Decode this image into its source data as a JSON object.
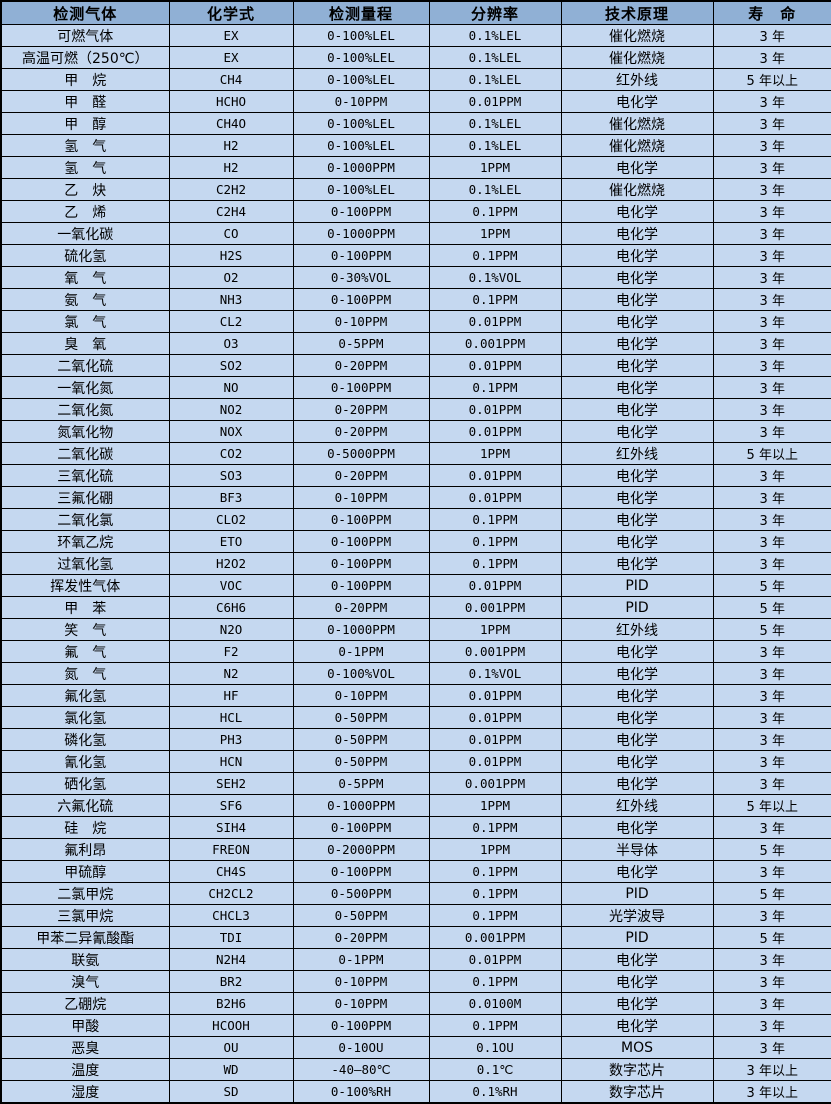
{
  "table": {
    "headers": [
      "检测气体",
      "化学式",
      "检测量程",
      "分辨率",
      "技术原理",
      "寿　命"
    ],
    "rows": [
      [
        "可燃气体",
        "EX",
        "0-100%LEL",
        "0.1%LEL",
        "催化燃烧",
        "3 年"
      ],
      [
        "高温可燃（250℃）",
        "EX",
        "0-100%LEL",
        "0.1%LEL",
        "催化燃烧",
        "3 年"
      ],
      [
        "甲　烷",
        "CH4",
        "0-100%LEL",
        "0.1%LEL",
        "红外线",
        "5 年以上"
      ],
      [
        "甲　醛",
        "HCHO",
        "0-10PPM",
        "0.01PPM",
        "电化学",
        "3 年"
      ],
      [
        "甲　醇",
        "CH4O",
        "0-100%LEL",
        "0.1%LEL",
        "催化燃烧",
        "3 年"
      ],
      [
        "氢　气",
        "H2",
        "0-100%LEL",
        "0.1%LEL",
        "催化燃烧",
        "3 年"
      ],
      [
        "氢　气",
        "H2",
        "0-1000PPM",
        "1PPM",
        "电化学",
        "3 年"
      ],
      [
        "乙　炔",
        "C2H2",
        "0-100%LEL",
        "0.1%LEL",
        "催化燃烧",
        "3 年"
      ],
      [
        "乙　烯",
        "C2H4",
        "0-100PPM",
        "0.1PPM",
        "电化学",
        "3 年"
      ],
      [
        "一氧化碳",
        "CO",
        "0-1000PPM",
        "1PPM",
        "电化学",
        "3 年"
      ],
      [
        "硫化氢",
        "H2S",
        "0-100PPM",
        "0.1PPM",
        "电化学",
        "3 年"
      ],
      [
        "氧　气",
        "O2",
        "0-30%VOL",
        "0.1%VOL",
        "电化学",
        "3 年"
      ],
      [
        "氨　气",
        "NH3",
        "0-100PPM",
        "0.1PPM",
        "电化学",
        "3 年"
      ],
      [
        "氯　气",
        "CL2",
        "0-10PPM",
        "0.01PPM",
        "电化学",
        "3 年"
      ],
      [
        "臭　氧",
        "O3",
        "0-5PPM",
        "0.001PPM",
        "电化学",
        "3 年"
      ],
      [
        "二氧化硫",
        "SO2",
        "0-20PPM",
        "0.01PPM",
        "电化学",
        "3 年"
      ],
      [
        "一氧化氮",
        "NO",
        "0-100PPM",
        "0.1PPM",
        "电化学",
        "3 年"
      ],
      [
        "二氧化氮",
        "NO2",
        "0-20PPM",
        "0.01PPM",
        "电化学",
        "3 年"
      ],
      [
        "氮氧化物",
        "NOX",
        "0-20PPM",
        "0.01PPM",
        "电化学",
        "3 年"
      ],
      [
        "二氧化碳",
        "CO2",
        "0-5000PPM",
        "1PPM",
        "红外线",
        "5 年以上"
      ],
      [
        "三氧化硫",
        "SO3",
        "0-20PPM",
        "0.01PPM",
        "电化学",
        "3 年"
      ],
      [
        "三氟化硼",
        "BF3",
        "0-10PPM",
        "0.01PPM",
        "电化学",
        "3 年"
      ],
      [
        "二氧化氯",
        "CLO2",
        "0-100PPM",
        "0.1PPM",
        "电化学",
        "3 年"
      ],
      [
        "环氧乙烷",
        "ETO",
        "0-100PPM",
        "0.1PPM",
        "电化学",
        "3 年"
      ],
      [
        "过氧化氢",
        "H2O2",
        "0-100PPM",
        "0.1PPM",
        "电化学",
        "3 年"
      ],
      [
        "挥发性气体",
        "VOC",
        "0-100PPM",
        "0.01PPM",
        "PID",
        "5 年"
      ],
      [
        "甲　苯",
        "C6H6",
        "0-20PPM",
        "0.001PPM",
        "PID",
        "5 年"
      ],
      [
        "笑　气",
        "N2O",
        "0-1000PPM",
        "1PPM",
        "红外线",
        "5 年"
      ],
      [
        "氟　气",
        "F2",
        "0-1PPM",
        "0.001PPM",
        "电化学",
        "3 年"
      ],
      [
        "氮　气",
        "N2",
        "0-100%VOL",
        "0.1%VOL",
        "电化学",
        "3 年"
      ],
      [
        "氟化氢",
        "HF",
        "0-10PPM",
        "0.01PPM",
        "电化学",
        "3 年"
      ],
      [
        "氯化氢",
        "HCL",
        "0-50PPM",
        "0.01PPM",
        "电化学",
        "3 年"
      ],
      [
        "磷化氢",
        "PH3",
        "0-50PPM",
        "0.01PPM",
        "电化学",
        "3 年"
      ],
      [
        "氰化氢",
        "HCN",
        "0-50PPM",
        "0.01PPM",
        "电化学",
        "3 年"
      ],
      [
        "硒化氢",
        "SEH2",
        "0-5PPM",
        "0.001PPM",
        "电化学",
        "3 年"
      ],
      [
        "六氟化硫",
        "SF6",
        "0-1000PPM",
        "1PPM",
        "红外线",
        "5 年以上"
      ],
      [
        "硅　烷",
        "SIH4",
        "0-100PPM",
        "0.1PPM",
        "电化学",
        "3 年"
      ],
      [
        "氟利昂",
        "FREON",
        "0-2000PPM",
        "1PPM",
        "半导体",
        "5 年"
      ],
      [
        "甲硫醇",
        "CH4S",
        "0-100PPM",
        "0.1PPM",
        "电化学",
        "3 年"
      ],
      [
        "二氯甲烷",
        "CH2CL2",
        "0-500PPM",
        "0.1PPM",
        "PID",
        "5 年"
      ],
      [
        "三氯甲烷",
        "CHCL3",
        "0-50PPM",
        "0.1PPM",
        "光学波导",
        "3 年"
      ],
      [
        "甲苯二异氰酸酯",
        "TDI",
        "0-20PPM",
        "0.001PPM",
        "PID",
        "5 年"
      ],
      [
        "联氨",
        "N2H4",
        "0-1PPM",
        "0.01PPM",
        "电化学",
        "3 年"
      ],
      [
        "溴气",
        "BR2",
        "0-10PPM",
        "0.1PPM",
        "电化学",
        "3 年"
      ],
      [
        "乙硼烷",
        "B2H6",
        "0-10PPM",
        "0.0100M",
        "电化学",
        "3 年"
      ],
      [
        "甲酸",
        "HCOOH",
        "0-100PPM",
        "0.1PPM",
        "电化学",
        "3 年"
      ],
      [
        "恶臭",
        "OU",
        "0-10OU",
        "0.1OU",
        "MOS",
        "3 年"
      ],
      [
        "温度",
        "WD",
        "-40—80℃",
        "0.1℃",
        "数字芯片",
        "3 年以上"
      ],
      [
        "湿度",
        "SD",
        "0-100%RH",
        "0.1%RH",
        "数字芯片",
        "3 年以上"
      ]
    ],
    "colors": {
      "header_bg": "#90b0d5",
      "row_bg": "#c5d8f0",
      "border": "#000000"
    }
  }
}
